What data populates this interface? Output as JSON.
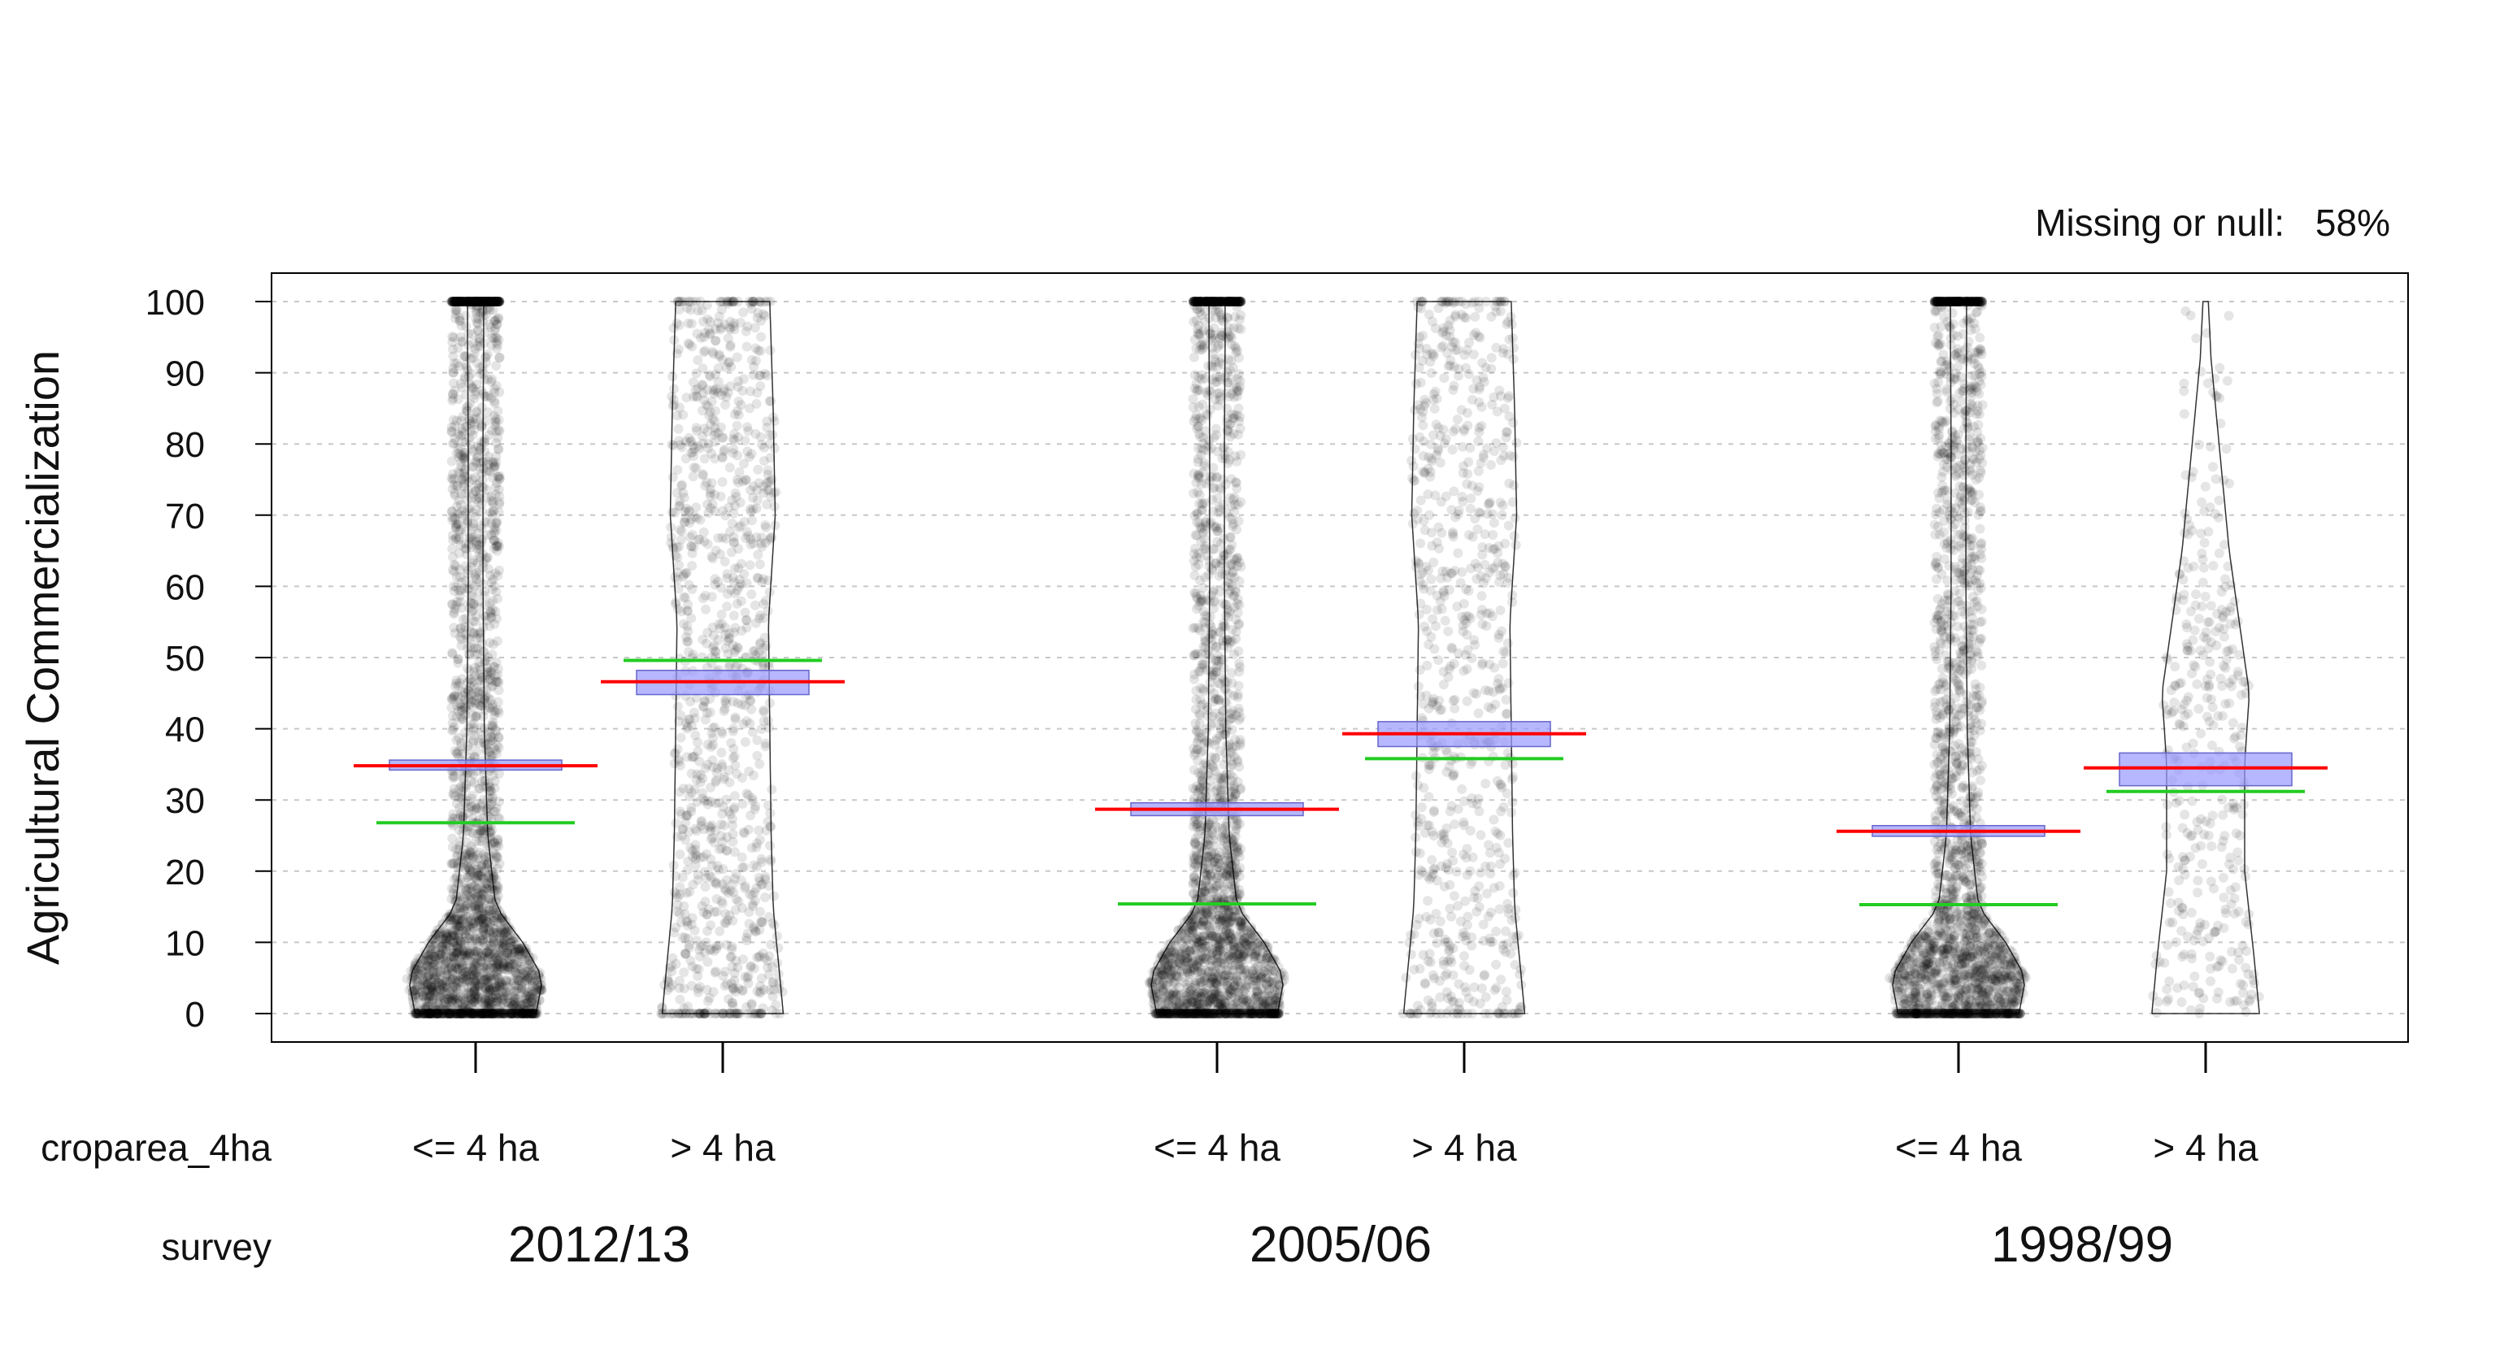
{
  "note": {
    "label": "Missing or null:",
    "value": "58%"
  },
  "chart_data": {
    "type": "violin",
    "ylabel": "Agricultural Commercialization",
    "ylim": [
      0,
      100
    ],
    "yticks": [
      0,
      10,
      20,
      30,
      40,
      50,
      60,
      70,
      80,
      90,
      100
    ],
    "grid": "horizontal dashed",
    "factor_labels": {
      "inner": "croparea_4ha",
      "outer": "survey"
    },
    "colors": {
      "mean_line": "#ff0000",
      "median_line": "#22cc22",
      "ci_box": "#9999ff",
      "points": "#000000"
    },
    "groups": [
      {
        "survey": "2012/13",
        "croparea_4ha": "<= 4 ha",
        "mean": 34.8,
        "median": 26.8,
        "ci": [
          34.2,
          35.6
        ],
        "n_points": 3000,
        "density": "heavy"
      },
      {
        "survey": "2012/13",
        "croparea_4ha": "> 4 ha",
        "mean": 46.6,
        "median": 49.6,
        "ci": [
          44.8,
          48.2
        ],
        "n_points": 1100,
        "density": "medium"
      },
      {
        "survey": "2005/06",
        "croparea_4ha": "<= 4 ha",
        "mean": 28.7,
        "median": 15.4,
        "ci": [
          27.8,
          29.6
        ],
        "n_points": 2600,
        "density": "heavy"
      },
      {
        "survey": "2005/06",
        "croparea_4ha": "> 4 ha",
        "mean": 39.3,
        "median": 35.8,
        "ci": [
          37.5,
          41.0
        ],
        "n_points": 750,
        "density": "medium"
      },
      {
        "survey": "1998/99",
        "croparea_4ha": "<= 4 ha",
        "mean": 25.6,
        "median": 15.3,
        "ci": [
          24.9,
          26.4
        ],
        "n_points": 2400,
        "density": "heavy"
      },
      {
        "survey": "1998/99",
        "croparea_4ha": "> 4 ha",
        "mean": 34.5,
        "median": 31.2,
        "ci": [
          32.0,
          36.6
        ],
        "n_points": 360,
        "density": "light"
      }
    ]
  }
}
